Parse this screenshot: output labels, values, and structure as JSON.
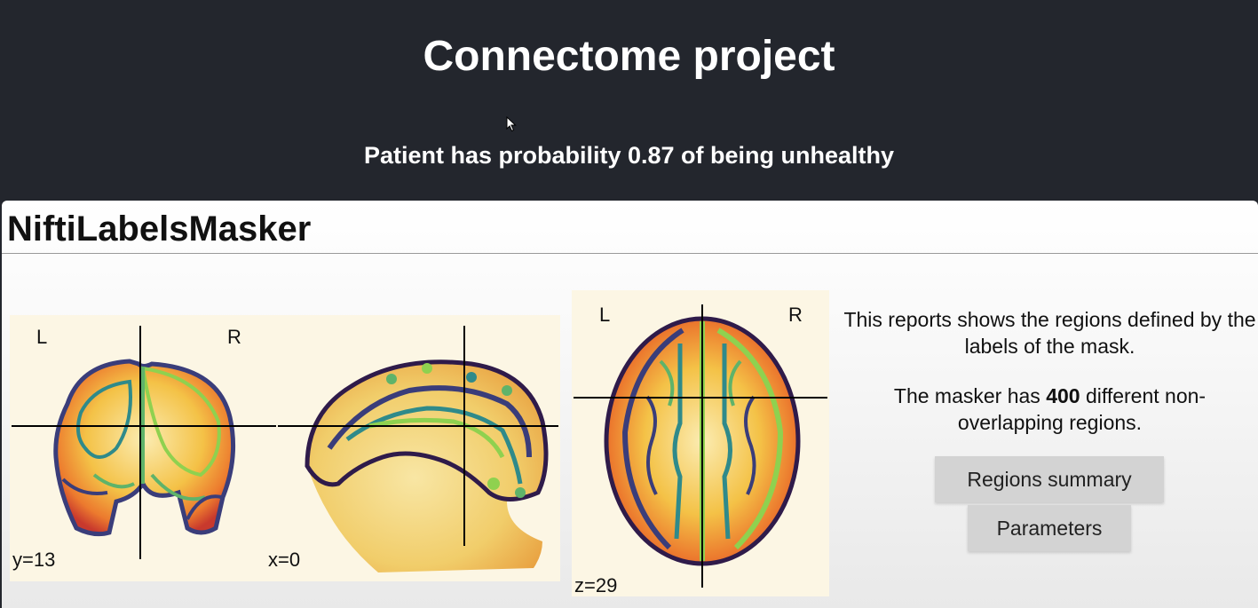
{
  "header": {
    "title": "Connectome project",
    "prediction": "Patient has probability 0.87 of being unhealthy"
  },
  "report": {
    "title": "NiftiLabelsMasker",
    "views": {
      "coronal": {
        "left_label": "L",
        "right_label": "R",
        "coordinate": "y=13"
      },
      "sagittal": {
        "coordinate": "x=0"
      },
      "axial": {
        "left_label": "L",
        "right_label": "R",
        "coordinate": "z=29"
      }
    },
    "description_line1": "This reports shows the regions defined by the labels of the mask.",
    "description_prefix": "The masker has ",
    "region_count": "400",
    "description_suffix": " different non-overlapping regions.",
    "buttons": {
      "regions_summary": "Regions summary",
      "parameters": "Parameters"
    }
  },
  "colors": {
    "header_bg": "#23262d",
    "button_bg": "#d3d3d3",
    "brain_tissue": "#f3c04a",
    "brain_hot": "#e0542d",
    "contour_dark": "#3a3d7a",
    "contour_teal": "#2f8a8a",
    "contour_green": "#8fd14f"
  }
}
